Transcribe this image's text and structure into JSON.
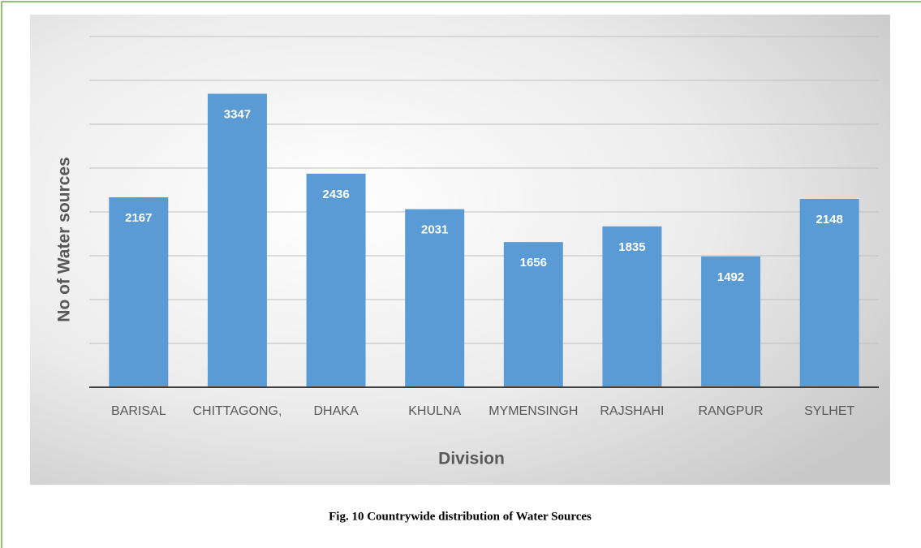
{
  "chart_data": {
    "type": "bar",
    "caption": "Fig. 10 Countrywide distribution of Water Sources",
    "x_label": "Division",
    "y_label": "No of Water sources",
    "categories": [
      "BARISAL",
      "CHITTAGONG,",
      "DHAKA",
      "KHULNA",
      "MYMENSINGH",
      "RAJSHAHI",
      "RANGPUR",
      "SYLHET"
    ],
    "values": [
      2167,
      3347,
      2436,
      2031,
      1656,
      1835,
      1492,
      2148
    ],
    "color": "#5b9bd5",
    "ylim": [
      0,
      4000
    ],
    "yticks": [
      0,
      500,
      1000,
      1500,
      2000,
      2500,
      3000,
      3500,
      4000
    ],
    "grid": true
  }
}
